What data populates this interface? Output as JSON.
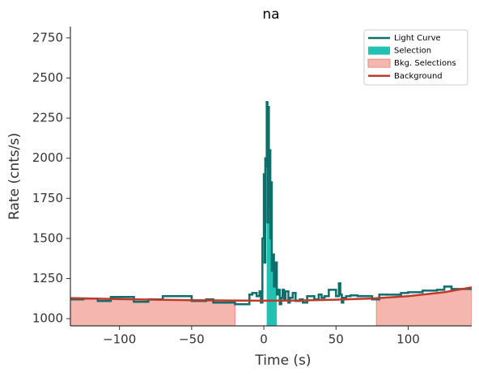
{
  "chart_data": {
    "type": "line",
    "title": "na",
    "x_label": "Time (s)",
    "y_label": "Rate (cnts/s)",
    "xlim": [
      -134,
      144
    ],
    "ylim": [
      955,
      2820
    ],
    "xticks": [
      {
        "value": -100,
        "label": "−100"
      },
      {
        "value": -50,
        "label": "−50"
      },
      0,
      50,
      100
    ],
    "yticks": [
      1000,
      1250,
      1500,
      1750,
      2000,
      2250,
      2500,
      2750
    ],
    "legend": "upper right",
    "series": [
      {
        "name": "Light Curve",
        "color": "#0e6e6b",
        "drawstyle": "steps-post",
        "x": [
          -134,
          -125,
          -115,
          -106,
          -100,
          -90,
          -80,
          -70,
          -62,
          -50,
          -40,
          -35,
          -25,
          -20,
          -10,
          -8,
          -5,
          -3,
          -2,
          -1,
          0,
          0.5,
          1,
          1.5,
          2,
          2.5,
          3,
          3.5,
          4,
          4.5,
          5,
          5.5,
          6,
          7,
          8,
          9,
          10,
          11,
          12,
          13,
          14,
          15,
          17,
          18,
          20,
          22,
          25,
          27,
          30,
          35,
          38,
          40,
          42,
          45,
          50,
          52,
          53,
          54,
          55,
          57,
          60,
          65,
          75,
          80,
          85,
          95,
          100,
          110,
          120,
          125,
          130,
          138,
          144
        ],
        "values": [
          1120,
          1125,
          1110,
          1135,
          1135,
          1105,
          1120,
          1140,
          1140,
          1110,
          1120,
          1100,
          1100,
          1090,
          1150,
          1160,
          1140,
          1170,
          1100,
          1500,
          1900,
          1350,
          2000,
          1950,
          2350,
          1600,
          2320,
          1700,
          2050,
          1500,
          1850,
          1300,
          1400,
          1200,
          1350,
          1150,
          1180,
          1090,
          1130,
          1180,
          1120,
          1170,
          1100,
          1130,
          1160,
          1110,
          1120,
          1100,
          1140,
          1120,
          1150,
          1130,
          1140,
          1180,
          1140,
          1220,
          1150,
          1100,
          1130,
          1140,
          1145,
          1140,
          1120,
          1150,
          1150,
          1160,
          1165,
          1175,
          1180,
          1200,
          1185,
          1185,
          1185
        ]
      },
      {
        "name": "Background",
        "color": "#c0392b",
        "x": [
          -134,
          -100,
          -75,
          -50,
          -25,
          0,
          25,
          50,
          75,
          100,
          125,
          144
        ],
        "values": [
          1128,
          1122,
          1118,
          1115,
          1113,
          1112,
          1113,
          1118,
          1126,
          1140,
          1165,
          1195
        ]
      }
    ],
    "selection": {
      "name": "Selection",
      "color": "#1fc2b3",
      "ranges": [
        [
          2,
          9
        ]
      ]
    },
    "bkg_selection": {
      "name": "Bkg. Selections",
      "color": "#f4b6ae",
      "edge": "#e88a7e",
      "ranges": [
        [
          -134,
          -20
        ],
        [
          78,
          144
        ]
      ]
    }
  }
}
